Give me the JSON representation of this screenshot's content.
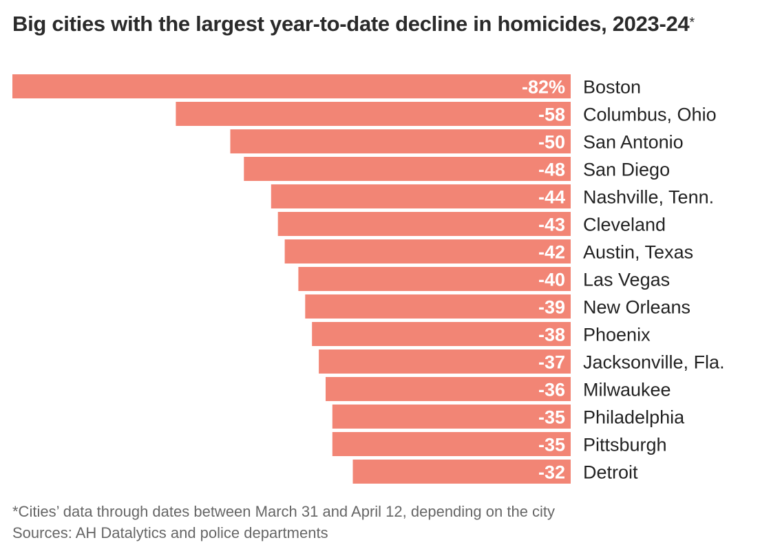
{
  "title": "Big cities with the largest year-to-date decline in homicides, 2023-24",
  "title_marker": "*",
  "footnote": "*Cities’ data through dates between March 31 and April 12, depending on the city",
  "source": "Sources: AH Datalytics and police departments",
  "colors": {
    "bar": "#f28575",
    "value_label": "#ffffff",
    "category_label": "#222222"
  },
  "chart_data": {
    "type": "bar",
    "orientation": "horizontal",
    "title": "Big cities with the largest year-to-date decline in homicides, 2023-24",
    "xlabel": "",
    "ylabel": "",
    "unit": "%",
    "xlim": [
      -82,
      0
    ],
    "grid": false,
    "legend": "none",
    "categories": [
      "Boston",
      "Columbus, Ohio",
      "San Antonio",
      "San Diego",
      "Nashville, Tenn.",
      "Cleveland",
      "Austin, Texas",
      "Las Vegas",
      "New Orleans",
      "Phoenix",
      "Jacksonville, Fla.",
      "Milwaukee",
      "Philadelphia",
      "Pittsburgh",
      "Detroit"
    ],
    "values": [
      -82,
      -58,
      -50,
      -48,
      -44,
      -43,
      -42,
      -40,
      -39,
      -38,
      -37,
      -36,
      -35,
      -35,
      -32
    ],
    "value_labels": [
      "-82%",
      "-58",
      "-50",
      "-48",
      "-44",
      "-43",
      "-42",
      "-40",
      "-39",
      "-38",
      "-37",
      "-36",
      "-35",
      "-35",
      "-32"
    ]
  }
}
